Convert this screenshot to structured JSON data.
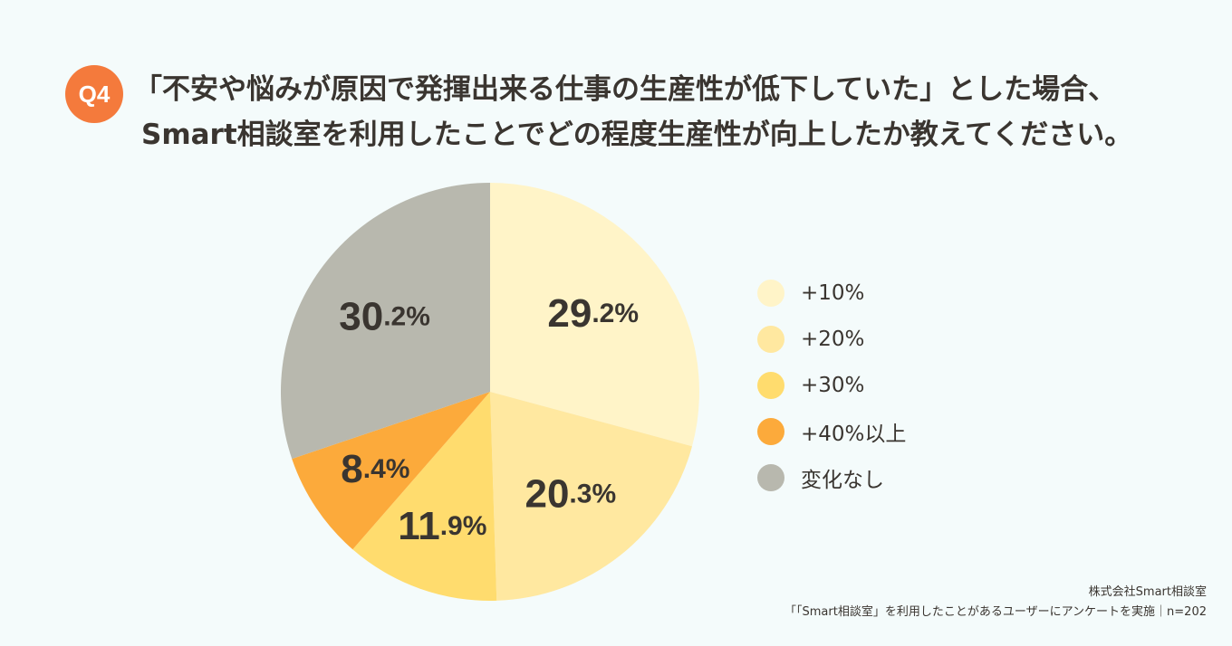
{
  "question_badge": "Q4",
  "title": {
    "line1": "「不安や悩みが原因で発揮出来る仕事の生産性が低下していた」とした場合、",
    "line2": "Smart相談室を利用したことでどの程度生産性が向上したか教えてください。"
  },
  "chart_data": {
    "type": "pie",
    "categories": [
      "+10%",
      "+20%",
      "+30%",
      "+40%以上",
      "変化なし"
    ],
    "values": [
      29.2,
      20.3,
      11.9,
      8.4,
      30.2
    ],
    "data_labels": [
      "29.2%",
      "20.3%",
      "11.9%",
      "8.4%",
      "30.2%"
    ],
    "colors": [
      "#fff4c8",
      "#ffe8a0",
      "#ffdc6e",
      "#fcaa3b",
      "#b8b8ae"
    ],
    "start_angle": "12 o'clock",
    "direction": "clockwise",
    "legend": "right"
  },
  "legend_items": [
    {
      "label": "+10%",
      "color": "#fff4c8"
    },
    {
      "label": "+20%",
      "color": "#ffe8a0"
    },
    {
      "label": "+30%",
      "color": "#ffdc6e"
    },
    {
      "label": "+40%以上",
      "color": "#fcaa3b"
    },
    {
      "label": "変化なし",
      "color": "#b8b8ae"
    }
  ],
  "footer": {
    "company": "株式会社Smart相談室",
    "note": "「「Smart相談室」を利用したことがあるユーザーにアンケートを実施｜n=202"
  }
}
